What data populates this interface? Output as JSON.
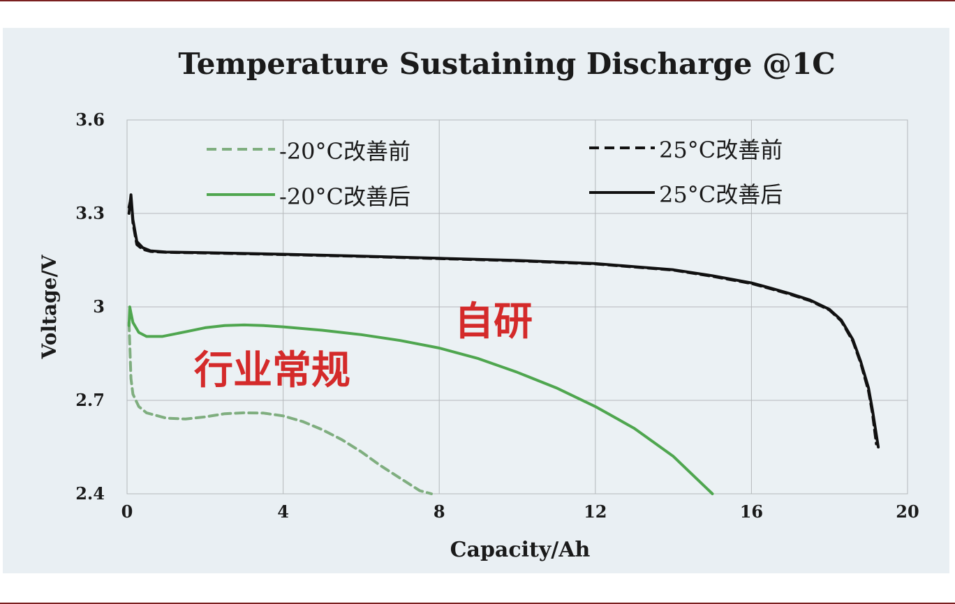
{
  "chart_data": {
    "type": "line",
    "title": "Temperature Sustaining Discharge @1C",
    "xlabel": "Capacity/Ah",
    "ylabel": "Voltage/V",
    "xlim": [
      0,
      20
    ],
    "ylim": [
      2.4,
      3.6
    ],
    "xticks": [
      0,
      4,
      8,
      12,
      16,
      20
    ],
    "xtick_labels": [
      "0",
      "4",
      "8",
      "12",
      "16",
      "20"
    ],
    "yticks": [
      2.4,
      2.7,
      3.0,
      3.3,
      3.6
    ],
    "ytick_labels": [
      "2.4",
      "2.7",
      "3",
      "3.3",
      "3.6"
    ],
    "grid": true,
    "legend_position": "top",
    "series": [
      {
        "name": "-20°C改善前",
        "style": "dashed",
        "color": "#7fae7f",
        "x": [
          0.05,
          0.08,
          0.1,
          0.15,
          0.3,
          0.5,
          1.0,
          1.5,
          2.0,
          2.5,
          3.0,
          3.5,
          4.0,
          4.5,
          5.0,
          5.5,
          6.0,
          6.5,
          7.0,
          7.5,
          7.8
        ],
        "y": [
          2.95,
          2.84,
          2.77,
          2.72,
          2.68,
          2.66,
          2.643,
          2.64,
          2.647,
          2.657,
          2.66,
          2.659,
          2.65,
          2.632,
          2.606,
          2.574,
          2.535,
          2.49,
          2.45,
          2.41,
          2.4
        ]
      },
      {
        "name": "-20°C改善后",
        "style": "solid",
        "color": "#4fa64f",
        "x": [
          0.05,
          0.07,
          0.1,
          0.15,
          0.3,
          0.5,
          0.9,
          1.5,
          2.0,
          2.5,
          3.0,
          3.5,
          4.0,
          5.0,
          6.0,
          7.0,
          8.0,
          9.0,
          10.0,
          11.0,
          12.0,
          13.0,
          14.0,
          14.5,
          15.0
        ],
        "y": [
          2.94,
          3.0,
          2.98,
          2.95,
          2.918,
          2.905,
          2.905,
          2.92,
          2.933,
          2.94,
          2.942,
          2.94,
          2.936,
          2.925,
          2.911,
          2.892,
          2.868,
          2.834,
          2.79,
          2.74,
          2.68,
          2.61,
          2.52,
          2.46,
          2.4
        ]
      },
      {
        "name": "25°C改善前",
        "style": "dashed",
        "color": "#111111",
        "x": [
          0.05,
          0.1,
          0.15,
          0.25,
          0.4,
          0.6,
          1.0,
          2.0,
          4.0,
          6.0,
          8.0,
          10.0,
          12.0,
          14.0,
          15.0,
          16.0,
          16.5,
          17.0,
          17.5,
          18.0,
          18.3,
          18.6,
          18.8,
          19.0,
          19.1,
          19.2
        ],
        "y": [
          3.32,
          3.35,
          3.27,
          3.2,
          3.185,
          3.178,
          3.175,
          3.173,
          3.168,
          3.162,
          3.155,
          3.148,
          3.138,
          3.118,
          3.098,
          3.075,
          3.058,
          3.04,
          3.02,
          2.99,
          2.955,
          2.89,
          2.82,
          2.73,
          2.66,
          2.56
        ]
      },
      {
        "name": "25°C改善后",
        "style": "solid",
        "color": "#111111",
        "x": [
          0.05,
          0.1,
          0.15,
          0.25,
          0.4,
          0.6,
          1.0,
          2.0,
          4.0,
          6.0,
          8.0,
          10.0,
          12.0,
          14.0,
          15.0,
          16.0,
          16.5,
          17.0,
          17.5,
          18.0,
          18.3,
          18.6,
          18.8,
          19.0,
          19.1,
          19.25
        ],
        "y": [
          3.3,
          3.36,
          3.28,
          3.21,
          3.19,
          3.18,
          3.176,
          3.174,
          3.169,
          3.163,
          3.156,
          3.149,
          3.139,
          3.119,
          3.1,
          3.077,
          3.06,
          3.042,
          3.022,
          2.992,
          2.958,
          2.895,
          2.825,
          2.74,
          2.67,
          2.55
        ]
      }
    ],
    "annotations": [
      {
        "text": "自研",
        "color": "#d42a2a",
        "x": 9.5,
        "y": 2.96
      },
      {
        "text": "行业常规",
        "color": "#d42a2a",
        "x": 3.7,
        "y": 2.8
      }
    ]
  }
}
